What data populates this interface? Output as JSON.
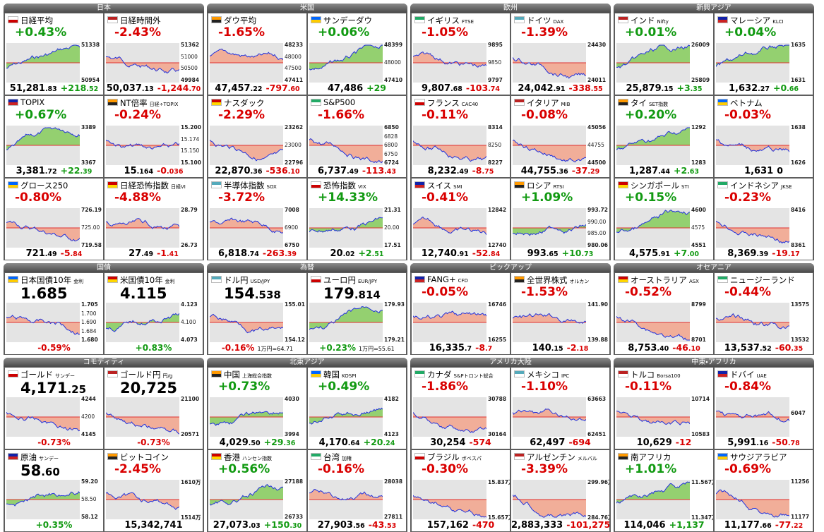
{
  "groups": [
    {
      "title": "日本",
      "tiles": [
        {
          "name": "日経平均",
          "pct": "+0.43%",
          "price": "51,281",
          "price_dec": ".83",
          "chg": "+218",
          "chg_dec": ".52",
          "labels": [
            "51338",
            "50954"
          ]
        },
        {
          "name": "日経時間外",
          "pct": "-2.43%",
          "price": "50,037",
          "price_dec": ".13",
          "chg": "-1,244",
          "chg_dec": ".70",
          "labels": [
            "51362",
            "51000",
            "50500",
            "49984"
          ]
        },
        {
          "name": "TOPIX",
          "pct": "+0.67%",
          "price": "3,381",
          "price_dec": ".72",
          "chg": "+22",
          "chg_dec": ".39",
          "labels": [
            "3389",
            "3367"
          ]
        },
        {
          "name": "NT倍率",
          "sub": "日経÷TOPIX",
          "pct": "-0.24%",
          "price": "15",
          "price_dec": ".164",
          "chg": "-0",
          "chg_dec": ".036",
          "labels": [
            "15.200",
            "15.174",
            "15.150",
            "15.100"
          ]
        },
        {
          "name": "グロース250",
          "pct": "-0.80%",
          "price": "721",
          "price_dec": ".49",
          "chg": "-5",
          "chg_dec": ".84",
          "labels": [
            "726.19",
            "725.00",
            "719.58"
          ]
        },
        {
          "name": "日経恐怖指数",
          "sub": "日経VI",
          "pct": "-4.88%",
          "price": "27",
          "price_dec": ".49",
          "chg": "-1",
          "chg_dec": ".41",
          "labels": [
            "28.79",
            "26.73"
          ]
        }
      ]
    },
    {
      "title": "米国",
      "tiles": [
        {
          "name": "ダウ平均",
          "pct": "-1.65%",
          "price": "47,457",
          "price_dec": ".22",
          "chg": "-797",
          "chg_dec": ".60",
          "labels": [
            "48233",
            "48000",
            "47500",
            "47411"
          ]
        },
        {
          "name": "サンデーダウ",
          "pct": "+0.06%",
          "price": "47,486",
          "chg": "+29",
          "labels": [
            "48399",
            "48000",
            "47410"
          ]
        },
        {
          "name": "ナスダック",
          "pct": "-2.29%",
          "price": "22,870",
          "price_dec": ".36",
          "chg": "-536",
          "chg_dec": ".10",
          "labels": [
            "23262",
            "23000",
            "22796"
          ]
        },
        {
          "name": "S&P500",
          "pct": "-1.66%",
          "price": "6,737",
          "price_dec": ".49",
          "chg": "-113",
          "chg_dec": ".43",
          "labels": [
            "6850",
            "6828",
            "6800",
            "6750",
            "6724"
          ]
        },
        {
          "name": "半導体指数",
          "sub": "SOX",
          "pct": "-3.72%",
          "price": "6,818",
          "price_dec": ".74",
          "chg": "-263",
          "chg_dec": ".39",
          "labels": [
            "7008",
            "6900",
            "6750"
          ]
        },
        {
          "name": "恐怖指数",
          "sub": "VIX",
          "pct": "+14.33%",
          "price": "20",
          "price_dec": ".02",
          "chg": "+2",
          "chg_dec": ".51",
          "labels": [
            "21.31",
            "20.00",
            "17.51"
          ]
        }
      ]
    },
    {
      "title": "欧州",
      "tiles": [
        {
          "name": "イギリス",
          "sub": "FTSE",
          "pct": "-1.05%",
          "price": "9,807",
          "price_dec": ".68",
          "chg": "-103",
          "chg_dec": ".74",
          "labels": [
            "9895",
            "9850",
            "9797"
          ]
        },
        {
          "name": "ドイツ",
          "sub": "DAX",
          "pct": "-1.39%",
          "price": "24,042",
          "price_dec": ".91",
          "chg": "-338",
          "chg_dec": ".55",
          "labels": [
            "24430",
            "24011"
          ]
        },
        {
          "name": "フランス",
          "sub": "CAC40",
          "pct": "-0.11%",
          "price": "8,232",
          "price_dec": ".49",
          "chg": "-8",
          "chg_dec": ".75",
          "labels": [
            "8314",
            "8250",
            "8227"
          ]
        },
        {
          "name": "イタリア",
          "sub": "MIB",
          "pct": "-0.08%",
          "price": "44,755",
          "price_dec": ".36",
          "chg": "-37",
          "chg_dec": ".29",
          "labels": [
            "45056",
            "44755",
            "44500"
          ]
        },
        {
          "name": "スイス",
          "sub": "SMI",
          "pct": "-0.41%",
          "price": "12,740",
          "price_dec": ".91",
          "chg": "-52",
          "chg_dec": ".84",
          "labels": [
            "12842",
            "12740"
          ]
        },
        {
          "name": "ロシア",
          "sub": "RTSI",
          "pct": "+1.09%",
          "price": "993",
          "price_dec": ".65",
          "chg": "+10",
          "chg_dec": ".73",
          "labels": [
            "993.72",
            "990.00",
            "985.00",
            "980.06"
          ]
        }
      ]
    },
    {
      "title": "新興アジア",
      "tiles": [
        {
          "name": "インド",
          "sub": "Nifty",
          "pct": "+0.01%",
          "price": "25,879",
          "price_dec": ".15",
          "chg": "+3",
          "chg_dec": ".35",
          "labels": [
            "26009",
            "25809"
          ]
        },
        {
          "name": "マレーシア",
          "sub": "KLCI",
          "pct": "+0.04%",
          "price": "1,632",
          "price_dec": ".27",
          "chg": "+0",
          "chg_dec": ".66",
          "labels": [
            "1635",
            "1631"
          ]
        },
        {
          "name": "タイ",
          "sub": "SET指数",
          "pct": "+0.20%",
          "price": "1,287",
          "price_dec": ".44",
          "chg": "+2",
          "chg_dec": ".63",
          "labels": [
            "1292",
            "1283"
          ]
        },
        {
          "name": "ベトナム",
          "pct": "-0.03%",
          "price": "1,631",
          "chg": "0",
          "labels": [
            "1638",
            "1626"
          ]
        },
        {
          "name": "シンガポール",
          "sub": "STI",
          "pct": "+0.15%",
          "price": "4,575",
          "price_dec": ".91",
          "chg": "+7",
          "chg_dec": ".00",
          "labels": [
            "4600",
            "4575",
            "4551"
          ]
        },
        {
          "name": "インドネシア",
          "sub": "JKSE",
          "pct": "-0.23%",
          "price": "8,369",
          "price_dec": ".39",
          "chg": "-19",
          "chg_dec": ".17",
          "labels": [
            "8416",
            "8361"
          ]
        }
      ]
    },
    {
      "title": "国債",
      "tiles": [
        {
          "name": "日本国債10年",
          "sub": "金利",
          "big": "1.685",
          "pct": "-0.59%",
          "labels": [
            "1.705",
            "1.700",
            "1.690",
            "1.684",
            "1.680"
          ]
        },
        {
          "name": "米国債10年",
          "sub": "金利",
          "big": "4.115",
          "pct": "+0.83%",
          "labels": [
            "4.123",
            "4.100",
            "4.073"
          ]
        }
      ]
    },
    {
      "title": "為替",
      "tiles": [
        {
          "name": "ドル円",
          "sub": "USD/JPY",
          "big": "154",
          "big_dec": ".538",
          "pct": "-0.16%",
          "note": "1万円=64.71",
          "labels": [
            "155.01",
            "154.12"
          ]
        },
        {
          "name": "ユーロ円",
          "sub": "EUR/JPY",
          "big": "179",
          "big_dec": ".814",
          "pct": "+0.23%",
          "note": "1万円=55.61",
          "labels": [
            "179.93",
            "179.21"
          ]
        }
      ]
    },
    {
      "title": "ピックアップ",
      "tiles": [
        {
          "name": "FANG+",
          "sub": "CFD",
          "pct": "-0.05%",
          "price": "16,335",
          "price_dec": ".7",
          "chg": "-8",
          "chg_dec": ".7",
          "labels": [
            "16746",
            "16255"
          ]
        },
        {
          "name": "全世界株式",
          "sub": "オルカン",
          "pct": "-1.53%",
          "price": "140",
          "price_dec": ".15",
          "chg": "-2",
          "chg_dec": ".18",
          "labels": [
            "141.90",
            "139.88"
          ]
        }
      ]
    },
    {
      "title": "オセアニア",
      "tiles": [
        {
          "name": "オーストラリア",
          "sub": "ASX",
          "pct": "-0.52%",
          "price": "8,753",
          "price_dec": ".40",
          "chg": "-46",
          "chg_dec": ".10",
          "labels": [
            "8799",
            "8701"
          ]
        },
        {
          "name": "ニュージーランド",
          "pct": "-0.44%",
          "price": "13,537",
          "price_dec": ".52",
          "chg": "-60",
          "chg_dec": ".35",
          "labels": [
            "13575",
            "13532"
          ]
        }
      ]
    },
    {
      "title": "コモディティ",
      "tiles": [
        {
          "name": "ゴールド",
          "sub": "サンデー",
          "big": "4,171",
          "big_dec": ".25",
          "pct": "-0.73%",
          "labels": [
            "4244",
            "4200",
            "4145"
          ]
        },
        {
          "name": "ゴールド円",
          "sub": "円/g",
          "big": "20,725",
          "pct": "-0.73%",
          "labels": [
            "21100",
            "20571"
          ]
        },
        {
          "name": "原油",
          "sub": "サンデー",
          "big": "58",
          "big_dec": ".60",
          "pct": "+0.35%",
          "labels": [
            "59.20",
            "58.50",
            "58.12"
          ]
        },
        {
          "name": "ビットコイン",
          "pct": "-2.45%",
          "price": "15,342,741",
          "labels": [
            "1610万",
            "1514万"
          ]
        }
      ]
    },
    {
      "title": "北東アジア",
      "tiles": [
        {
          "name": "中国",
          "sub": "上海総合指数",
          "pct": "+0.73%",
          "price": "4,029",
          "price_dec": ".50",
          "chg": "+29",
          "chg_dec": ".36",
          "labels": [
            "4030",
            "3994"
          ]
        },
        {
          "name": "韓国",
          "sub": "KOSPI",
          "pct": "+0.49%",
          "price": "4,170",
          "price_dec": ".64",
          "chg": "+20",
          "chg_dec": ".24",
          "labels": [
            "4182",
            "4123"
          ]
        },
        {
          "name": "香港",
          "sub": "ハンセン指数",
          "pct": "+0.56%",
          "price": "27,073",
          "price_dec": ".03",
          "chg": "+150",
          "chg_dec": ".30",
          "labels": [
            "27188",
            "26733"
          ]
        },
        {
          "name": "台湾",
          "sub": "加権",
          "pct": "-0.16%",
          "price": "27,903",
          "price_dec": ".56",
          "chg": "-43",
          "chg_dec": ".53",
          "labels": [
            "28038",
            "27811"
          ]
        }
      ]
    },
    {
      "title": "アメリカ大陸",
      "tiles": [
        {
          "name": "カナダ",
          "sub": "S&Pトロント総合",
          "pct": "-1.86%",
          "price": "30,254",
          "chg": "-574",
          "labels": [
            "30788",
            "30164"
          ]
        },
        {
          "name": "メキシコ",
          "sub": "IPC",
          "pct": "-1.10%",
          "price": "62,497",
          "chg": "-694",
          "labels": [
            "63663",
            "62451"
          ]
        },
        {
          "name": "ブラジル",
          "sub": "ボベスパ",
          "pct": "-0.30%",
          "price": "157,162",
          "chg": "-470",
          "labels": [
            "15.837万",
            "15.657万"
          ]
        },
        {
          "name": "アルゼンチン",
          "sub": "メルバル",
          "pct": "-3.39%",
          "price": "2,883,333",
          "chg": "-101,275",
          "labels": [
            "299.96万",
            "284.76万"
          ]
        }
      ]
    },
    {
      "title": "中東・アフリカ",
      "tiles": [
        {
          "name": "トルコ",
          "sub": "Borsa100",
          "pct": "-0.11%",
          "price": "10,629",
          "chg": "-12",
          "labels": [
            "10714",
            "10583"
          ]
        },
        {
          "name": "ドバイ",
          "sub": "UAE",
          "pct": "-0.84%",
          "price": "5,991",
          "price_dec": ".16",
          "chg": "-50",
          "chg_dec": ".78",
          "labels": [
            "6047"
          ]
        },
        {
          "name": "南アフリカ",
          "pct": "+1.01%",
          "price": "114,046",
          "chg": "+1,137",
          "labels": [
            "11.567万",
            "11.347万"
          ]
        },
        {
          "name": "サウジアラビア",
          "pct": "-0.69%",
          "price": "11,177",
          "price_dec": ".66",
          "chg": "-77",
          "chg_dec": ".22",
          "labels": [
            "11256",
            "11177"
          ]
        }
      ]
    }
  ]
}
